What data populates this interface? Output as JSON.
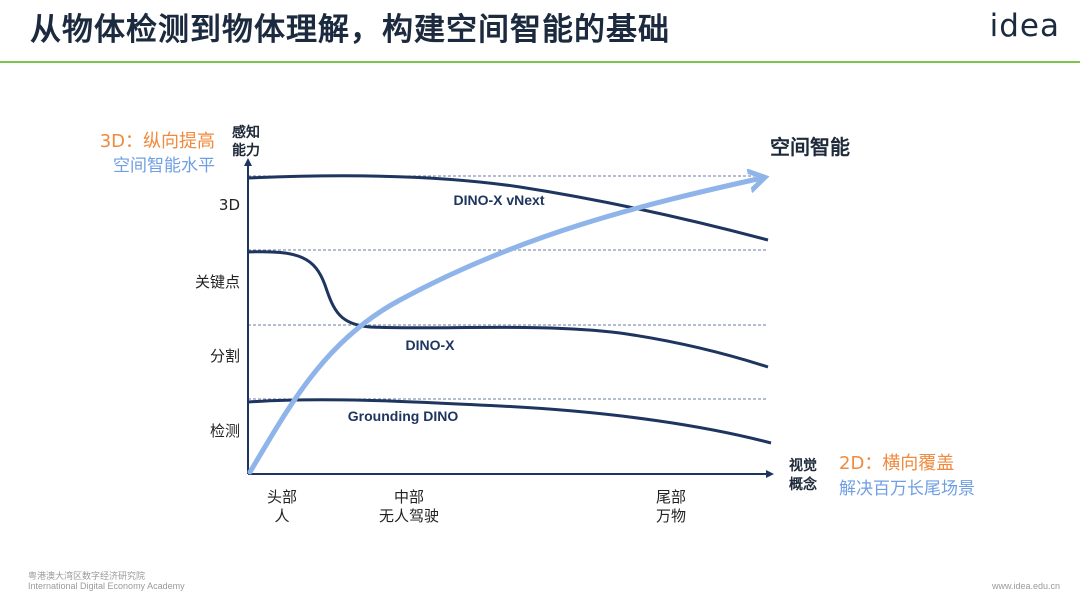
{
  "header": {
    "title": "从物体检测到物体理解，构建空间智能的基础",
    "logo_text": "idea"
  },
  "diagram": {
    "y_axis_label": [
      "感知",
      "能力"
    ],
    "x_axis_label": [
      "视觉",
      "概念"
    ],
    "y_levels": [
      "检测",
      "分割",
      "关键点",
      "3D"
    ],
    "x_positions": [
      {
        "line1": "头部",
        "line2": "人"
      },
      {
        "line1": "中部",
        "line2": "无人驾驶"
      },
      {
        "line1": "尾部",
        "line2": "万物"
      }
    ],
    "curves": [
      {
        "name": "Grounding DINO",
        "color": "#1e3560"
      },
      {
        "name": "DINO-X",
        "color": "#1e3560"
      },
      {
        "name": "DINO-X vNext",
        "color": "#1e3560"
      }
    ],
    "trend": {
      "label": "空间智能",
      "color": "#8fb4ea"
    },
    "annotation_3d": {
      "title": "3D：纵向提高",
      "subtitle": "空间智能水平",
      "title_color": "#ef8a3e",
      "subtitle_color": "#6f9fe3"
    },
    "annotation_2d": {
      "title": "2D：横向覆盖",
      "subtitle": "解决百万长尾场景",
      "title_color": "#ef8a3e",
      "subtitle_color": "#6f9fe3"
    }
  },
  "footer": {
    "institute_cn": "粤港澳大湾区数字经济研究院",
    "institute_en": "International Digital Economy Academy",
    "url": "www.idea.edu.cn"
  }
}
